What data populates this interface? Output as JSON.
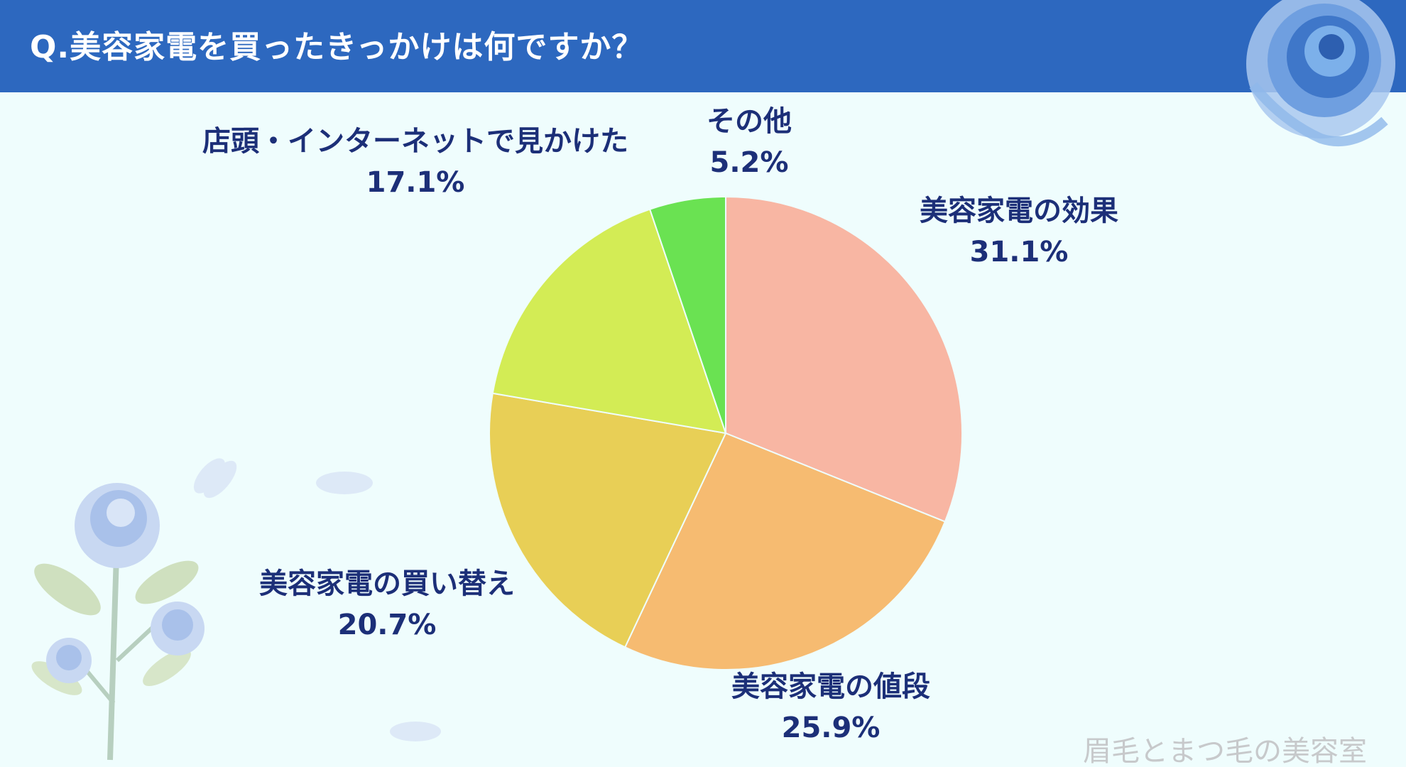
{
  "header": {
    "title": "Q.美容家電を買ったきっかけは何ですか？"
  },
  "watermark": "眉毛とまつ毛の美容室",
  "colors": {
    "header_bg": "#2d68bf",
    "background": "#effdfd",
    "label_text": "#1c2f78"
  },
  "chart_data": {
    "type": "pie",
    "title": "Q.美容家電を買ったきっかけは何ですか？",
    "start_angle": "12 o'clock",
    "direction": "clockwise",
    "slices": [
      {
        "label": "美容家電の効果",
        "value": 31.1,
        "display": "31.1%",
        "color": "#f8b6a3"
      },
      {
        "label": "美容家電の値段",
        "value": 25.9,
        "display": "25.9%",
        "color": "#f6bb71"
      },
      {
        "label": "美容家電の買い替え",
        "value": 20.7,
        "display": "20.7%",
        "color": "#e8cf56"
      },
      {
        "label": "店頭・インターネットで見かけた",
        "value": 17.1,
        "display": "17.1%",
        "color": "#d3ec55"
      },
      {
        "label": "その他",
        "value": 5.2,
        "display": "5.2%",
        "color": "#6ae252"
      }
    ]
  }
}
